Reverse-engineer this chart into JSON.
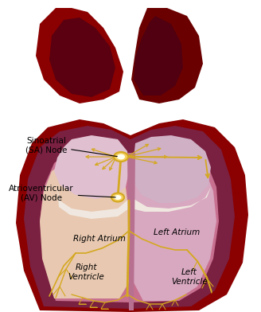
{
  "background_color": "#ffffff",
  "labels": {
    "SA_node": "Sinoatrial\n(SA) Node",
    "AV_node": "Atrioventricular\n(AV) Node",
    "right_atrium": "Right Atrium",
    "left_atrium": "Left Atrium",
    "right_ventricle": "Right\nVentricle",
    "left_ventricle": "Left\nVentricle"
  },
  "colors": {
    "outer_heart": "#8B0000",
    "dark_red": "#6B0000",
    "muscle_dark": "#7a2040",
    "muscle_light": "#c87090",
    "inner_right": "#e8c8b0",
    "atria_right": "#e0c0d0",
    "atria_left": "#d0b0c5",
    "left_chamber": "#d8a8c0",
    "node_color": "#d4a820",
    "node_glow": "#f5d060",
    "conduction": "#d4a820",
    "white_line": "#f0e8e0",
    "septum": "#b87090",
    "lobe_inner_r": "#5a0010",
    "lobe_inner_l": "#500010"
  }
}
